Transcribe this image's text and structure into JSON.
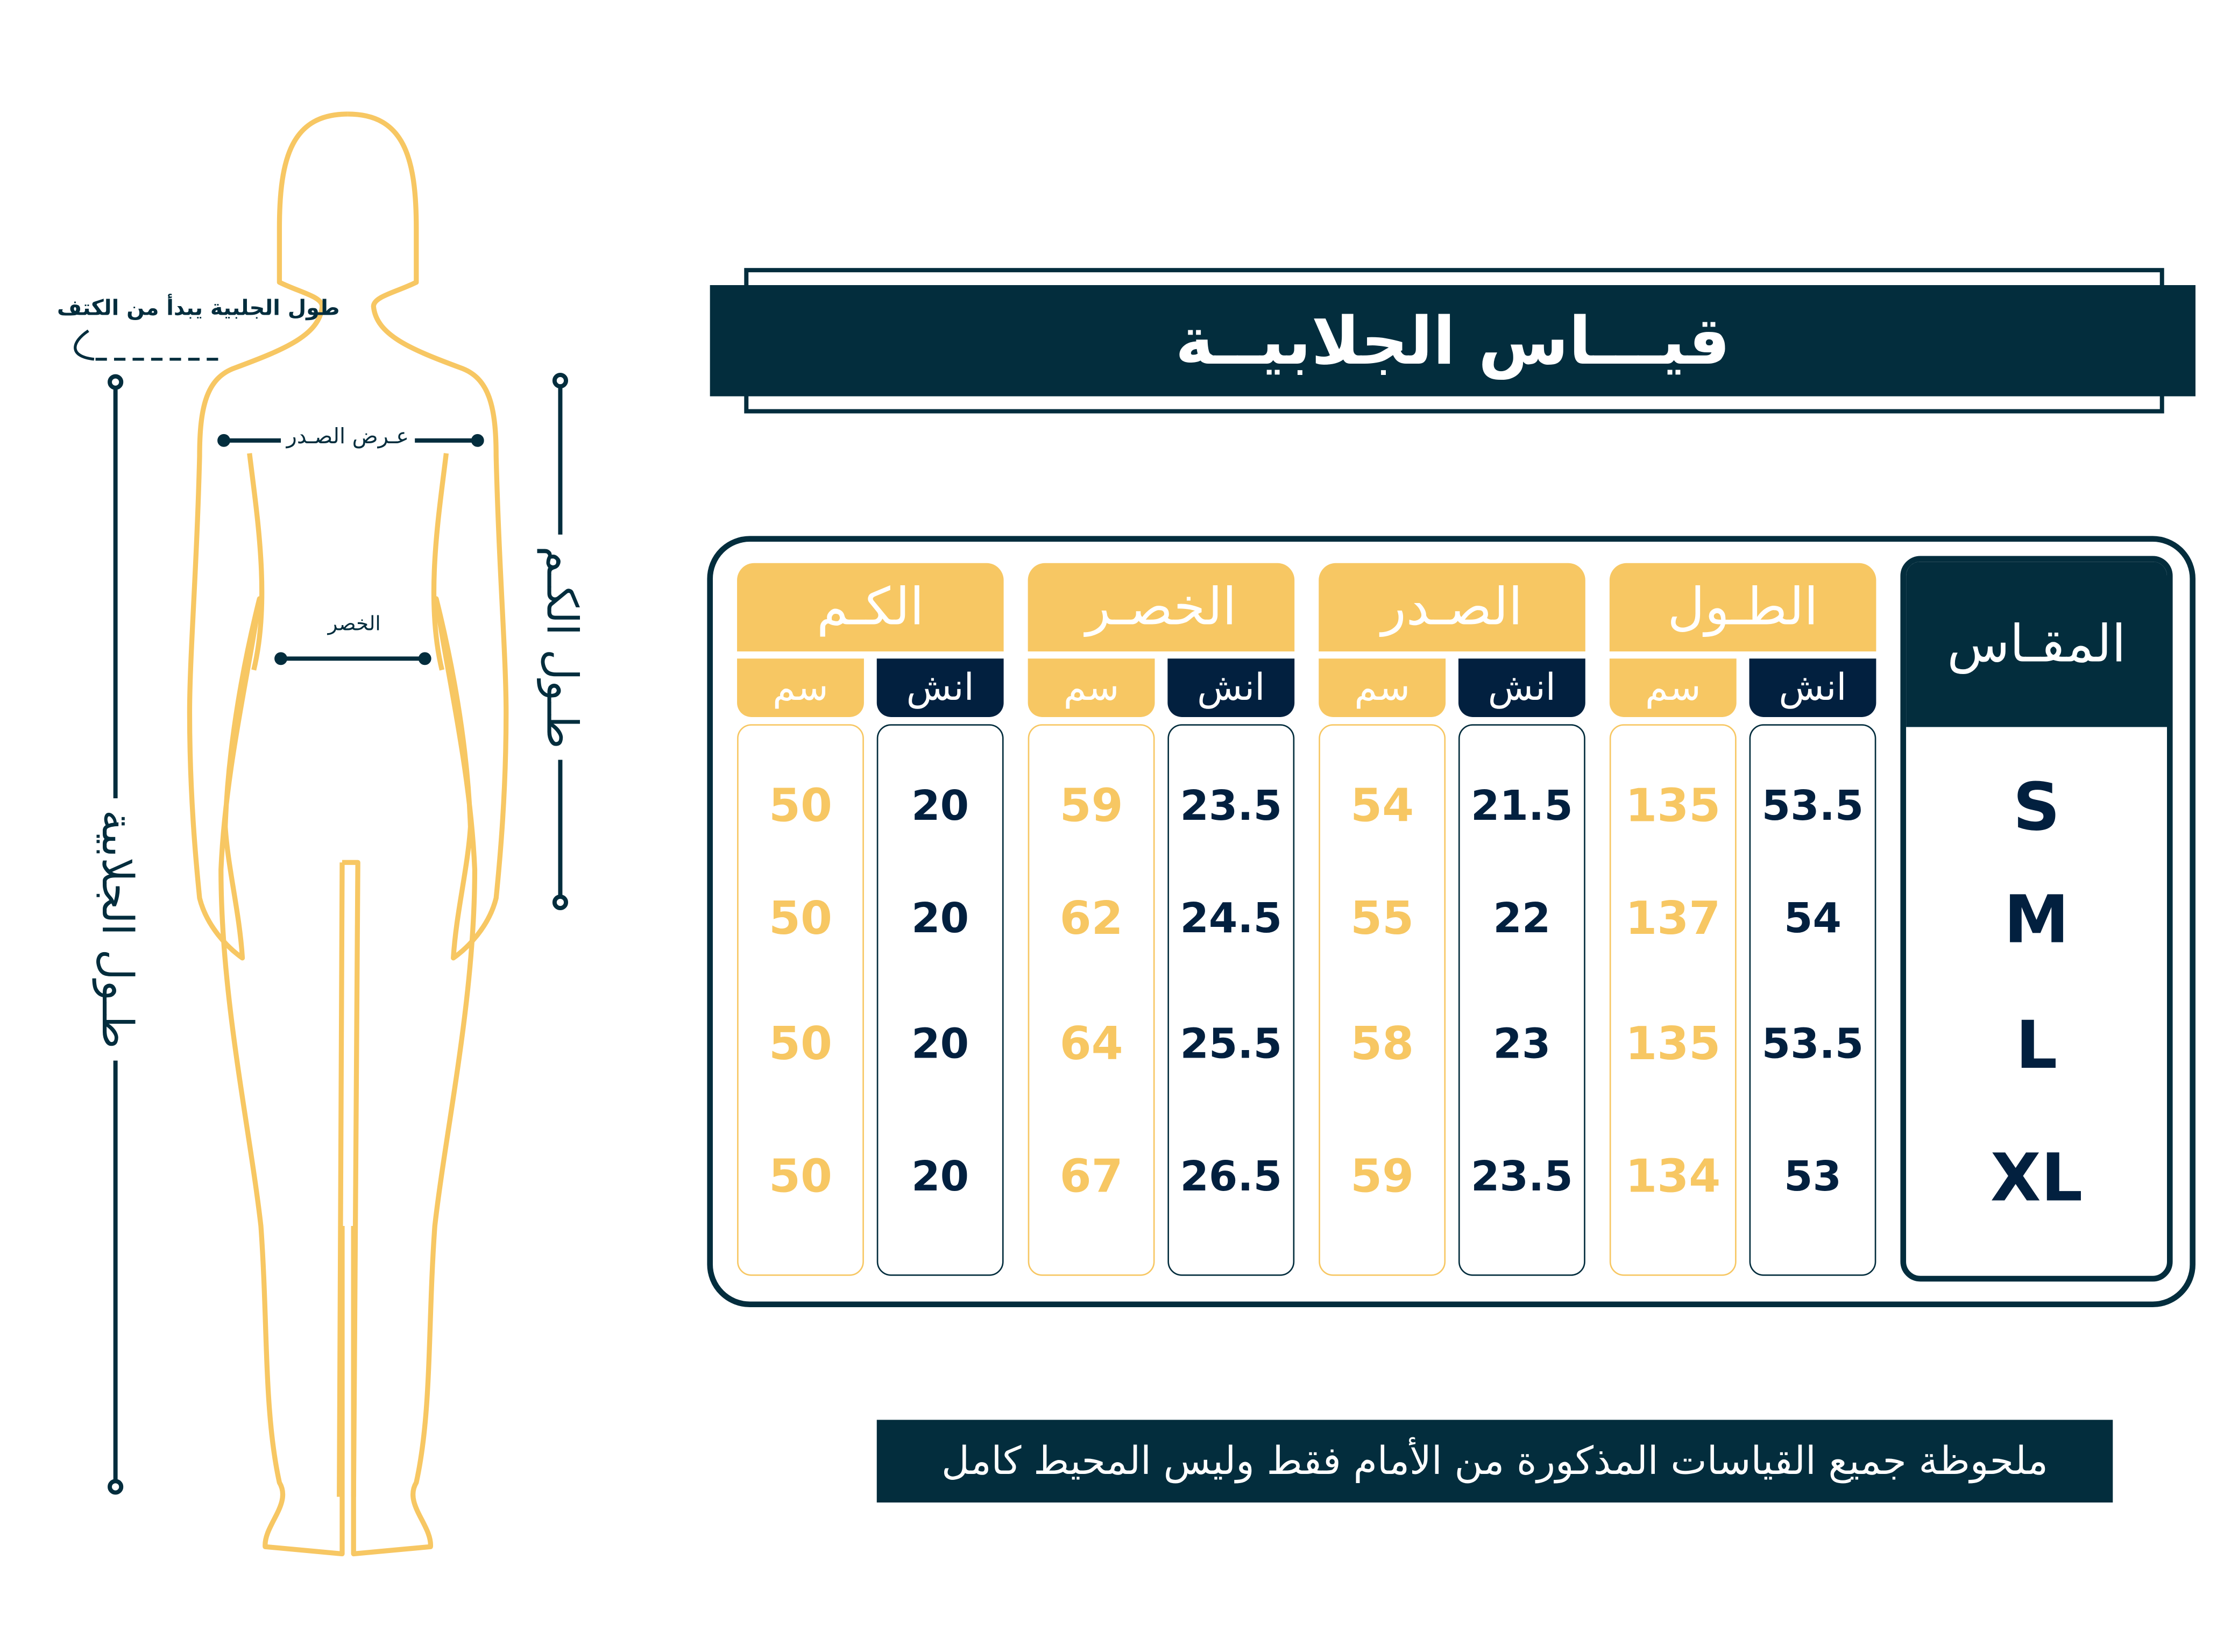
{
  "colors": {
    "navy": "#032d3d",
    "navy_dark": "#02203f",
    "yellow": "#f7c763"
  },
  "title": "قيـــاس الجلابيــة",
  "figure": {
    "length_note": "طول الجلبية يبدأ من الكتف",
    "chest_label": "عـرض الصـدر",
    "waist_label": "الخصر",
    "dress_length_label": "طـول الجلابية",
    "sleeve_length_label": "طـول الكـم"
  },
  "table": {
    "size_header": "المقـاس",
    "sizes": [
      "S",
      "M",
      "L",
      "XL"
    ],
    "unit_cm": "سم",
    "unit_inch": "انش",
    "groups": [
      {
        "header": "الكـم",
        "cm": [
          "50",
          "50",
          "50",
          "50"
        ],
        "inch": [
          "20",
          "20",
          "20",
          "20"
        ]
      },
      {
        "header": "الخصـر",
        "cm": [
          "59",
          "62",
          "64",
          "67"
        ],
        "inch": [
          "23.5",
          "24.5",
          "25.5",
          "26.5"
        ]
      },
      {
        "header": "الصـدر",
        "cm": [
          "54",
          "55",
          "58",
          "59"
        ],
        "inch": [
          "21.5",
          "22",
          "23",
          "23.5"
        ]
      },
      {
        "header": "الطـول",
        "cm": [
          "135",
          "137",
          "135",
          "134"
        ],
        "inch": [
          "53.5",
          "54",
          "53.5",
          "53"
        ]
      }
    ]
  },
  "note": "ملحوظة جميع القياسات المذكورة من الأمام فقط وليس المحيط كامل"
}
